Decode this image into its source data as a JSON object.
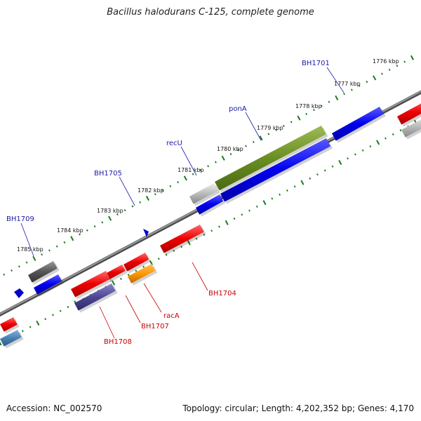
{
  "title": "Bacillus halodurans C-125, complete genome",
  "footer": {
    "accession": "Accession: NC_002570",
    "topology": "Topology: circular; Length: 4,202,352 bp; Genes: 4,170"
  },
  "colors": {
    "backbone": "#777777",
    "ticks": "#1a7a1a",
    "forward_label": "#1a1aa8",
    "reverse_label": "#cc0000"
  },
  "ruler": {
    "unit": "kbp",
    "labels": [
      "1776 kbp",
      "1777 kbp",
      "1778 kbp",
      "1779 kbp",
      "1780 kbp",
      "1781 kbp",
      "1782 kbp",
      "1783 kbp",
      "1784 kbp",
      "1785 kbp"
    ]
  },
  "gene_labels": {
    "forward": [
      "BH1701",
      "ponA",
      "recU",
      "BH1705",
      "BH1709"
    ],
    "reverse": [
      "BH1704",
      "racA",
      "BH1707",
      "BH1708"
    ]
  }
}
